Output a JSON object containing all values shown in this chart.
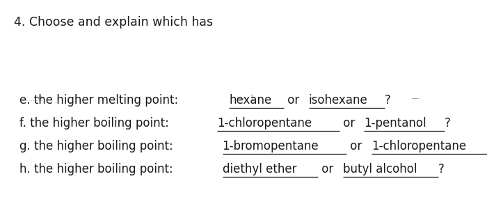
{
  "title": "4. Choose and explain which has",
  "background_color": "#ffffff",
  "font_color": "#1a1a1a",
  "faded_color": "#aaaaaa",
  "title_fontsize": 12.5,
  "body_fontsize": 12.0,
  "faded_fontsize": 8.5,
  "lines": [
    {
      "prefix": "e. the higher melting point: ",
      "segments": [
        {
          "text": "hexane",
          "underline": true
        },
        {
          "text": " or ",
          "underline": false
        },
        {
          "text": "isohexane",
          "underline": true
        },
        {
          "text": "?",
          "underline": false
        }
      ]
    },
    {
      "prefix": "f. the higher boiling point: ",
      "segments": [
        {
          "text": "1-chloropentane",
          "underline": true
        },
        {
          "text": " or ",
          "underline": false
        },
        {
          "text": "1-pentanol",
          "underline": true
        },
        {
          "text": "?",
          "underline": false
        }
      ]
    },
    {
      "prefix": "g. the higher boiling point: ",
      "segments": [
        {
          "text": "1-bromopentane",
          "underline": true
        },
        {
          "text": " or ",
          "underline": false
        },
        {
          "text": "1-chloropentane",
          "underline": true
        },
        {
          "text": "?",
          "underline": false
        }
      ]
    },
    {
      "prefix": "h. the higher boiling point: ",
      "segments": [
        {
          "text": "diethyl ether",
          "underline": true
        },
        {
          "text": " or ",
          "underline": false
        },
        {
          "text": "butyl alcohol",
          "underline": true
        },
        {
          "text": "?",
          "underline": false
        }
      ]
    }
  ]
}
